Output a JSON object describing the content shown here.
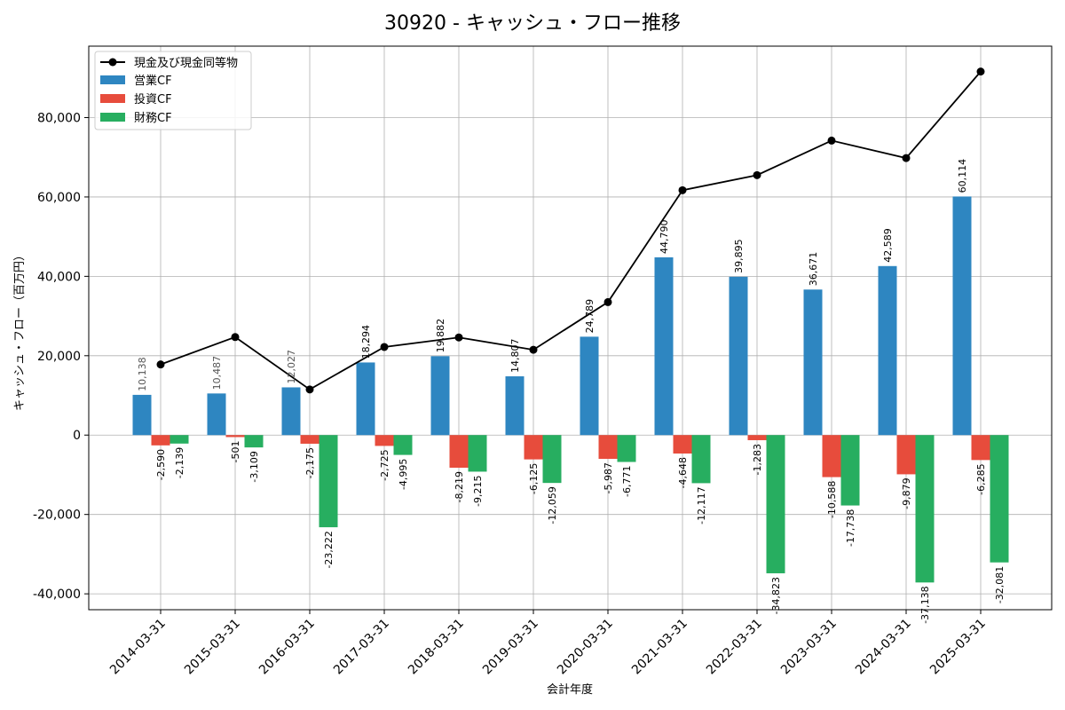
{
  "chart_data": {
    "type": "bar",
    "title": "30920 - キャッシュ・フロー推移",
    "xlabel": "会計年度",
    "ylabel": "キャッシュ・フロー（百万円）",
    "ylim": [
      -44000,
      98000
    ],
    "yticks": [
      -40000,
      -20000,
      0,
      20000,
      40000,
      60000,
      80000
    ],
    "ytick_labels": [
      "-40,000",
      "-20,000",
      "0",
      "20,000",
      "40,000",
      "60,000",
      "80,000"
    ],
    "grid": true,
    "legend_position": "top-left",
    "categories": [
      "2014-03-31",
      "2015-03-31",
      "2016-03-31",
      "2017-03-31",
      "2018-03-31",
      "2019-03-31",
      "2020-03-31",
      "2021-03-31",
      "2022-03-31",
      "2023-03-31",
      "2024-03-31",
      "2025-03-31"
    ],
    "series": [
      {
        "name": "営業CF",
        "kind": "bar",
        "color": "#2e86c1",
        "values": [
          10138,
          10487,
          12027,
          18294,
          19882,
          14807,
          24789,
          44790,
          39895,
          36671,
          42589,
          60114
        ],
        "labels": [
          "10,138",
          "10,487",
          "12,027",
          "18,294",
          "19,882",
          "14,807",
          "24,789",
          "44,790",
          "39,895",
          "36,671",
          "42,589",
          "60,114"
        ]
      },
      {
        "name": "投資CF",
        "kind": "bar",
        "color": "#e74c3c",
        "values": [
          -2590,
          -501,
          -2175,
          -2725,
          -8219,
          -6125,
          -5987,
          -4648,
          -1283,
          -10588,
          -9879,
          -6285
        ],
        "labels": [
          "-2,590",
          "-501",
          "-2,175",
          "-2,725",
          "-8,219",
          "-6,125",
          "-5,987",
          "-4,648",
          "-1,283",
          "-10,588",
          "-9,879",
          "-6,285"
        ]
      },
      {
        "name": "財務CF",
        "kind": "bar",
        "color": "#27ae60",
        "values": [
          -2139,
          -3109,
          -23222,
          -4995,
          -9215,
          -12059,
          -6771,
          -12117,
          -34823,
          -17738,
          -37138,
          -32081
        ],
        "labels": [
          "-2,139",
          "-3,109",
          "-23,222",
          "-4,995",
          "-9,215",
          "-12,059",
          "-6,771",
          "-12,117",
          "-34,823",
          "-17,738",
          "-37,138",
          "-32,081"
        ]
      },
      {
        "name": "現金及び現金同等物",
        "kind": "line",
        "color": "#000000",
        "values": [
          17800,
          24700,
          11500,
          22200,
          24600,
          21500,
          33500,
          61700,
          65500,
          74200,
          69800,
          91600
        ]
      }
    ]
  }
}
